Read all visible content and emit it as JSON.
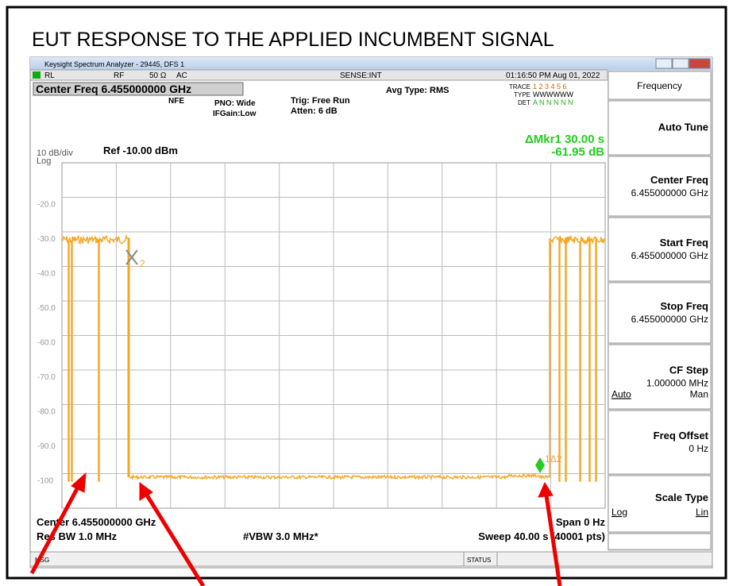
{
  "title": "EUT RESPONSE TO THE  APPLIED INCUMBENT SIGNAL",
  "window": {
    "title": "Keysight Spectrum Analyzer - 29445, DFS 1"
  },
  "status_bar": {
    "rl": "RL",
    "rf": "RF",
    "impedance": "50 Ω",
    "coupling": "AC",
    "sense": "SENSE:INT",
    "datetime": "01:16:50 PM Aug 01, 2022"
  },
  "settings": {
    "center_freq": "Center Freq 6.455000000 GHz",
    "nfe": "NFE",
    "pno": "PNO: Wide",
    "ifgain": "IFGain:Low",
    "trig": "Trig: Free Run",
    "atten": "Atten: 6 dB",
    "avg_type": "Avg Type: RMS",
    "trace_label": "TRACE",
    "trace_values": "1 2 3 4 5 6",
    "type_label": "TYPE",
    "type_values": "WWWWWW",
    "det_label": "DET",
    "det_values": "A N N N N N"
  },
  "marker": {
    "delta": "ΔMkr1 30.00 s",
    "value": "-61.95 dB",
    "x_label": "2",
    "delta_label": "1Δ2"
  },
  "scale": {
    "per_div": "10 dB/div",
    "ref": "Ref -10.00 dBm",
    "mode": "Log",
    "y_labels": [
      "-20.0",
      "-30.0",
      "-40.0",
      "-50.0",
      "-60.0",
      "-70.0",
      "-80.0",
      "-90.0",
      "-100"
    ]
  },
  "footer": {
    "center": "Center 6.455000000 GHz",
    "span": "Span 0 Hz",
    "res_bw": "Res BW 1.0 MHz",
    "vbw": "#VBW 3.0 MHz*",
    "sweep": "Sweep  40.00 s (40001 pts)",
    "msg": "MSG",
    "status": "STATUS"
  },
  "menu": {
    "header": "Frequency",
    "buttons": [
      {
        "label": "Auto Tune"
      },
      {
        "label": "Center Freq",
        "value": "6.455000000 GHz"
      },
      {
        "label": "Start Freq",
        "value": "6.455000000 GHz"
      },
      {
        "label": "Stop Freq",
        "value": "6.455000000 GHz"
      },
      {
        "label": "CF Step",
        "value": "1.000000 MHz",
        "left": "Auto",
        "right": "Man"
      },
      {
        "label": "Freq Offset",
        "value": "0 Hz"
      },
      {
        "label": "Scale Type",
        "left": "Log",
        "right": "Lin"
      }
    ]
  }
}
